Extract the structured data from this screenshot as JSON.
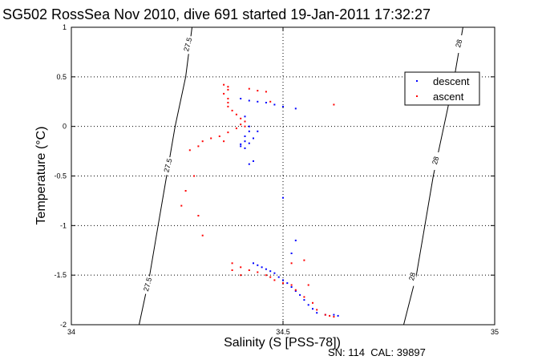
{
  "chart_data": {
    "type": "scatter",
    "title": "SG502 RossSea Nov 2010, dive 691 started 19-Jan-2011 17:32:27",
    "xlabel": "Salinity (S [PSS-78])",
    "ylabel": "Temperature (°C)",
    "footer": "SN: 114  CAL: 39897",
    "xlim": [
      34,
      35
    ],
    "ylim": [
      -2,
      1
    ],
    "xticks": [
      34,
      34.5,
      35
    ],
    "yticks": [
      -2,
      -1.5,
      -1,
      -0.5,
      0,
      0.5,
      1
    ],
    "xtick_labels": [
      "34",
      "34.5",
      "35"
    ],
    "ytick_labels": [
      "-2",
      "-1.5",
      "-1",
      "-0.5",
      "0",
      "0.5",
      "1"
    ],
    "grid": true,
    "legend_position": "top-right",
    "colors": {
      "descent": "#0000ff",
      "ascent": "#ff0000",
      "contour": "#000000",
      "grid": "#000000"
    },
    "contours": [
      {
        "label": "27.5",
        "points": [
          [
            34.285,
            1.0
          ],
          [
            34.27,
            0.5
          ],
          [
            34.245,
            0.0
          ],
          [
            34.225,
            -0.5
          ],
          [
            34.205,
            -1.0
          ],
          [
            34.185,
            -1.5
          ],
          [
            34.16,
            -2.0
          ]
        ],
        "label_positions": [
          [
            34.275,
            0.82
          ],
          [
            34.228,
            -0.4
          ],
          [
            34.18,
            -1.6
          ]
        ]
      },
      {
        "label": "28",
        "points": [
          [
            34.925,
            1.0
          ],
          [
            34.905,
            0.5
          ],
          [
            34.88,
            0.0
          ],
          [
            34.855,
            -0.5
          ],
          [
            34.835,
            -1.0
          ],
          [
            34.815,
            -1.5
          ],
          [
            34.785,
            -2.0
          ]
        ],
        "label_positions": [
          [
            34.915,
            0.83
          ],
          [
            34.86,
            -0.35
          ],
          [
            34.805,
            -1.52
          ]
        ]
      }
    ],
    "series": [
      {
        "name": "descent",
        "color": "#0000ff",
        "points": [
          [
            34.4,
            0.28
          ],
          [
            34.42,
            0.26
          ],
          [
            34.44,
            0.25
          ],
          [
            34.46,
            0.24
          ],
          [
            34.48,
            0.22
          ],
          [
            34.5,
            0.2
          ],
          [
            34.53,
            0.18
          ],
          [
            34.41,
            0.1
          ],
          [
            34.42,
            0.0
          ],
          [
            34.42,
            -0.05
          ],
          [
            34.41,
            -0.1
          ],
          [
            34.41,
            -0.15
          ],
          [
            34.4,
            -0.18
          ],
          [
            34.4,
            -0.2
          ],
          [
            34.41,
            -0.22
          ],
          [
            34.42,
            -0.17
          ],
          [
            34.43,
            -0.12
          ],
          [
            34.44,
            -0.05
          ],
          [
            34.43,
            -0.35
          ],
          [
            34.42,
            -0.38
          ],
          [
            34.5,
            -0.72
          ],
          [
            34.53,
            -1.15
          ],
          [
            34.52,
            -1.28
          ],
          [
            34.43,
            -1.38
          ],
          [
            34.44,
            -1.4
          ],
          [
            34.45,
            -1.42
          ],
          [
            34.46,
            -1.44
          ],
          [
            34.47,
            -1.46
          ],
          [
            34.48,
            -1.48
          ],
          [
            34.49,
            -1.52
          ],
          [
            34.5,
            -1.55
          ],
          [
            34.51,
            -1.58
          ],
          [
            34.52,
            -1.62
          ],
          [
            34.53,
            -1.66
          ],
          [
            34.54,
            -1.7
          ],
          [
            34.55,
            -1.75
          ],
          [
            34.56,
            -1.8
          ],
          [
            34.57,
            -1.84
          ],
          [
            34.58,
            -1.88
          ],
          [
            34.6,
            -1.9
          ],
          [
            34.62,
            -1.9
          ],
          [
            34.63,
            -1.91
          ]
        ]
      },
      {
        "name": "ascent",
        "color": "#ff0000",
        "points": [
          [
            34.36,
            0.42
          ],
          [
            34.37,
            0.4
          ],
          [
            34.37,
            0.37
          ],
          [
            34.36,
            0.33
          ],
          [
            34.37,
            0.28
          ],
          [
            34.37,
            0.24
          ],
          [
            34.37,
            0.2
          ],
          [
            34.38,
            0.16
          ],
          [
            34.39,
            0.12
          ],
          [
            34.4,
            0.08
          ],
          [
            34.41,
            0.05
          ],
          [
            34.4,
            0.02
          ],
          [
            34.41,
            0.0
          ],
          [
            34.39,
            -0.02
          ],
          [
            34.37,
            -0.06
          ],
          [
            34.35,
            -0.1
          ],
          [
            34.33,
            -0.12
          ],
          [
            34.31,
            -0.15
          ],
          [
            34.3,
            -0.2
          ],
          [
            34.28,
            -0.24
          ],
          [
            34.36,
            -0.15
          ],
          [
            34.42,
            0.38
          ],
          [
            34.44,
            0.36
          ],
          [
            34.46,
            0.35
          ],
          [
            34.62,
            0.22
          ],
          [
            34.47,
            0.25
          ],
          [
            34.29,
            -0.5
          ],
          [
            34.27,
            -0.65
          ],
          [
            34.26,
            -0.8
          ],
          [
            34.3,
            -0.9
          ],
          [
            34.31,
            -1.1
          ],
          [
            34.38,
            -1.38
          ],
          [
            34.4,
            -1.42
          ],
          [
            34.42,
            -1.45
          ],
          [
            34.44,
            -1.47
          ],
          [
            34.46,
            -1.5
          ],
          [
            34.47,
            -1.52
          ],
          [
            34.48,
            -1.55
          ],
          [
            34.5,
            -1.58
          ],
          [
            34.52,
            -1.6
          ],
          [
            34.53,
            -1.65
          ],
          [
            34.55,
            -1.72
          ],
          [
            34.57,
            -1.78
          ],
          [
            34.58,
            -1.85
          ],
          [
            34.6,
            -1.9
          ],
          [
            34.61,
            -1.91
          ],
          [
            34.62,
            -1.92
          ],
          [
            34.4,
            -1.5
          ],
          [
            34.38,
            -1.45
          ],
          [
            34.56,
            -1.6
          ],
          [
            34.55,
            -1.35
          ],
          [
            34.52,
            -1.38
          ]
        ]
      }
    ]
  }
}
